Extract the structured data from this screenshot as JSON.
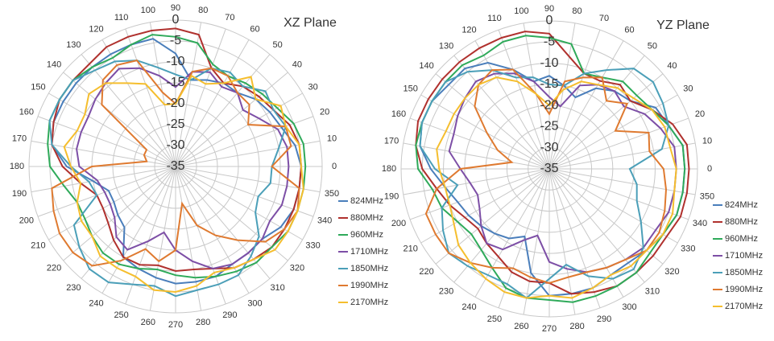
{
  "chart_data": [
    {
      "type": "radar",
      "title": "XZ  Plane",
      "categories": [
        0,
        10,
        20,
        30,
        40,
        50,
        60,
        70,
        80,
        90,
        100,
        110,
        120,
        130,
        140,
        150,
        160,
        170,
        180,
        190,
        200,
        210,
        220,
        230,
        240,
        250,
        260,
        270,
        280,
        290,
        300,
        310,
        320,
        330,
        340,
        350
      ],
      "ylim": [
        -35,
        0
      ],
      "yticks": [
        0,
        -5,
        -10,
        -15,
        -20,
        -25,
        -30,
        -35
      ],
      "grid": true,
      "legend": "lower right",
      "series": [
        {
          "name": "824MHz",
          "color": "#4a7ebb",
          "values": [
            -5,
            -6,
            -8,
            -9,
            -10,
            -12,
            -12,
            -13,
            -14,
            -8,
            -4,
            -4,
            -4,
            -4,
            -4,
            -4,
            -4,
            -5,
            -9,
            -15,
            -18,
            -18,
            -17,
            -16,
            -10,
            -9,
            -8,
            -7,
            -7,
            -7,
            -8,
            -8,
            -8,
            -6,
            -5,
            -5
          ]
        },
        {
          "name": "880MHz",
          "color": "#b0312e",
          "values": [
            -5,
            -5,
            -6,
            -8,
            -9,
            -10,
            -12,
            -10,
            -3,
            -2,
            -2,
            -2,
            -2,
            -3,
            -3,
            -3,
            -4,
            -5,
            -8,
            -12,
            -15,
            -15,
            -14,
            -12,
            -10,
            -10,
            -11,
            -10,
            -10,
            -9,
            -7,
            -6,
            -5,
            -5,
            -5,
            -5
          ]
        },
        {
          "name": "960MHz",
          "color": "#2faa5a",
          "values": [
            -4,
            -4,
            -5,
            -7,
            -8,
            -9,
            -10,
            -9,
            -5,
            -4,
            -3,
            -4,
            -5,
            -4,
            -3,
            -3,
            -3,
            -4,
            -5,
            -8,
            -10,
            -10,
            -9,
            -8,
            -8,
            -9,
            -10,
            -9,
            -8,
            -7,
            -6,
            -5,
            -5,
            -4,
            -4,
            -4
          ]
        },
        {
          "name": "1710MHz",
          "color": "#7d4fa6",
          "values": [
            -8,
            -8,
            -9,
            -12,
            -14,
            -12,
            -13,
            -11,
            -12,
            -16,
            -13,
            -10,
            -8,
            -9,
            -10,
            -11,
            -11,
            -11,
            -12,
            -16,
            -17,
            -17,
            -16,
            -13,
            -12,
            -16,
            -19,
            -15,
            -12,
            -9,
            -8,
            -8,
            -8,
            -9,
            -8,
            -8
          ]
        },
        {
          "name": "1850MHz",
          "color": "#4b9fb8",
          "values": [
            -12,
            -10,
            -7,
            -8,
            -7,
            -10,
            -9,
            -10,
            -14,
            -13,
            -11,
            -8,
            -6,
            -5,
            -3,
            -3,
            -3,
            -5,
            -10,
            -14,
            -15,
            -7,
            -5,
            -3,
            -3,
            -5,
            -6,
            -4,
            -5,
            -5,
            -5,
            -7,
            -9,
            -13,
            -14,
            -12
          ]
        },
        {
          "name": "1990MHz",
          "color": "#df7a30",
          "values": [
            -12,
            -7,
            -7,
            -15,
            -12,
            -12,
            -10,
            -10,
            -12,
            -20,
            -17,
            -8,
            -7,
            -8,
            -12,
            -27,
            -27,
            -28,
            -15,
            -5,
            -4,
            -3,
            -3,
            -4,
            -9,
            -14,
            -12,
            -15,
            -26,
            -20,
            -16,
            -12,
            -7,
            -5,
            -4,
            -5
          ]
        },
        {
          "name": "2170MHz",
          "color": "#f5be2e",
          "values": [
            -5,
            -5,
            -7,
            -6,
            -10,
            -7,
            -12,
            -14,
            -13,
            -20,
            -20,
            -14,
            -12,
            -9,
            -8,
            -10,
            -10,
            -8,
            -10,
            -12,
            -10,
            -9,
            -9,
            -7,
            -7,
            -7,
            -5,
            -5,
            -6,
            -8,
            -7,
            -6,
            -4,
            -4,
            -4,
            -4
          ]
        }
      ]
    },
    {
      "type": "radar",
      "title": "YZ  Plane",
      "categories": [
        0,
        10,
        20,
        30,
        40,
        50,
        60,
        70,
        80,
        90,
        100,
        110,
        120,
        130,
        140,
        150,
        160,
        170,
        180,
        190,
        200,
        210,
        220,
        230,
        240,
        250,
        260,
        270,
        280,
        290,
        300,
        310,
        320,
        330,
        340,
        350
      ],
      "ylim": [
        -35,
        0
      ],
      "yticks": [
        0,
        -5,
        -10,
        -15,
        -20,
        -25,
        -30,
        -35
      ],
      "grid": true,
      "legend": "lower right",
      "series": [
        {
          "name": "824MHz",
          "color": "#4a7ebb",
          "values": [
            -3,
            -3,
            -5,
            -6,
            -10,
            -11,
            -13,
            -17,
            -15,
            -13,
            -14,
            -10,
            -6,
            -4,
            -4,
            -3,
            -3,
            -4,
            -7,
            -10,
            -12,
            -13,
            -14,
            -15,
            -16,
            -18,
            -10,
            -5,
            -5,
            -5,
            -6,
            -6,
            -5,
            -4,
            -3,
            -3
          ]
        },
        {
          "name": "880MHz",
          "color": "#b0312e",
          "values": [
            -2,
            -2,
            -4,
            -7,
            -10,
            -9,
            -11,
            -11,
            -8,
            -3,
            -2,
            -2,
            -2,
            -2,
            -2,
            -2,
            -2,
            -3,
            -5,
            -8,
            -10,
            -12,
            -13,
            -12,
            -11,
            -9,
            -8,
            -8,
            -5,
            -4,
            -3,
            -3,
            -3,
            -3,
            -2,
            -2
          ]
        },
        {
          "name": "960MHz",
          "color": "#2faa5a",
          "values": [
            -3,
            -3,
            -5,
            -7,
            -8,
            -8,
            -10,
            -11,
            -5,
            -4,
            -3,
            -3,
            -4,
            -3,
            -3,
            -3,
            -3,
            -3,
            -4,
            -7,
            -8,
            -10,
            -11,
            -10,
            -8,
            -5,
            -4,
            -4,
            -3,
            -3,
            -3,
            -3,
            -4,
            -4,
            -3,
            -3
          ]
        },
        {
          "name": "1710MHz",
          "color": "#7d4fa6",
          "values": [
            -5,
            -5,
            -7,
            -9,
            -12,
            -11,
            -12,
            -14,
            -20,
            -18,
            -14,
            -11,
            -9,
            -8,
            -9,
            -10,
            -11,
            -11,
            -14,
            -16,
            -17,
            -16,
            -14,
            -12,
            -13,
            -17,
            -19,
            -13,
            -11,
            -9,
            -8,
            -7,
            -6,
            -6,
            -5,
            -5
          ]
        },
        {
          "name": "1850MHz",
          "color": "#4b9fb8",
          "values": [
            -16,
            -8,
            -5,
            -4,
            -3,
            -4,
            -8,
            -11,
            -15,
            -15,
            -13,
            -12,
            -8,
            -5,
            -3,
            -3,
            -3,
            -4,
            -8,
            -13,
            -8,
            -6,
            -4,
            -5,
            -6,
            -6,
            -4,
            -9,
            -12,
            -8,
            -5,
            -4,
            -6,
            -10,
            -13,
            -14
          ]
        },
        {
          "name": "1990MHz",
          "color": "#df7a30",
          "values": [
            -8,
            -11,
            -10,
            -17,
            -11,
            -14,
            -10,
            -12,
            -14,
            -22,
            -17,
            -10,
            -8,
            -9,
            -12,
            -18,
            -22,
            -26,
            -14,
            -8,
            -4,
            -4,
            -4,
            -6,
            -8,
            -10,
            -9,
            -8,
            -9,
            -9,
            -8,
            -7,
            -5,
            -5,
            -6,
            -7
          ]
        },
        {
          "name": "2170MHz",
          "color": "#f5be2e",
          "values": [
            -5,
            -6,
            -6,
            -7,
            -9,
            -10,
            -12,
            -13,
            -16,
            -20,
            -17,
            -13,
            -10,
            -9,
            -9,
            -9,
            -9,
            -8,
            -9,
            -10,
            -10,
            -9,
            -7,
            -6,
            -5,
            -4,
            -4,
            -5,
            -4,
            -5,
            -6,
            -5,
            -5,
            -4,
            -4,
            -5
          ]
        }
      ]
    }
  ]
}
